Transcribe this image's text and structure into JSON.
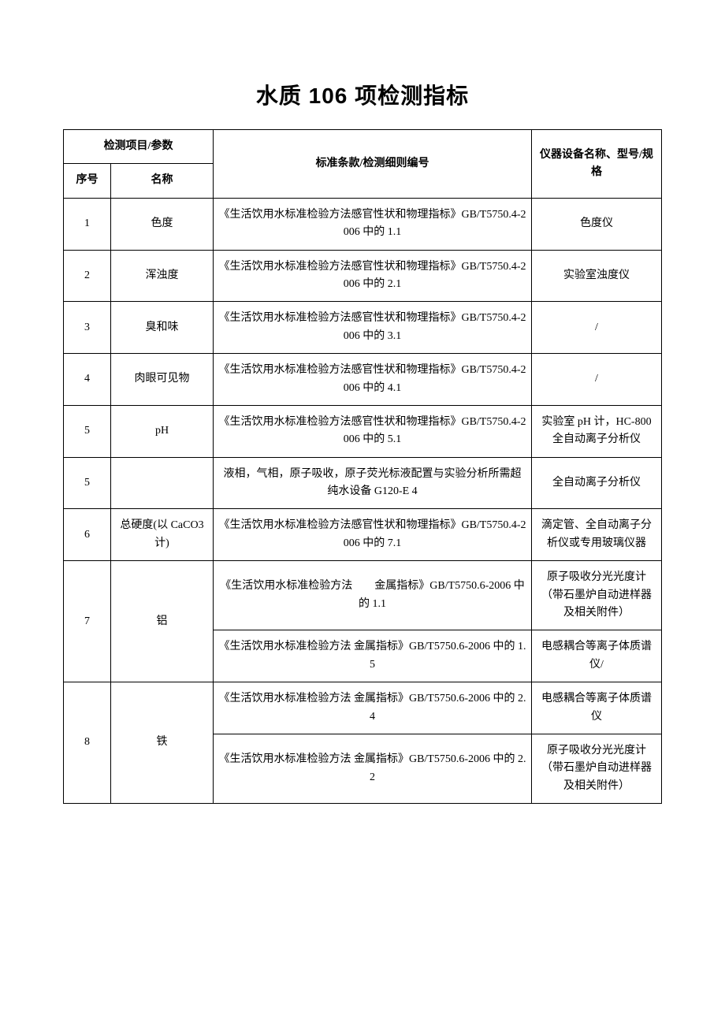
{
  "title": "水质 106 项检测指标",
  "headers": {
    "groupLeft": "检测项目/参数",
    "seq": "序号",
    "name": "名称",
    "standard": "标准条款/检测细则编号",
    "equipment": "仪器设备名称、型号/规格"
  },
  "rows": [
    {
      "seq": "1",
      "name": "色度",
      "standard": "《生活饮用水标准检验方法感官性状和物理指标》GB/T5750.4-2006 中的 1.1",
      "equipment": "色度仪"
    },
    {
      "seq": "2",
      "name": "浑浊度",
      "standard": "《生活饮用水标准检验方法感官性状和物理指标》GB/T5750.4-2006 中的 2.1",
      "equipment": "实验室浊度仪"
    },
    {
      "seq": "3",
      "name": "臭和味",
      "standard": "《生活饮用水标准检验方法感官性状和物理指标》GB/T5750.4-2006 中的 3.1",
      "equipment": "/"
    },
    {
      "seq": "4",
      "name": "肉眼可见物",
      "standard": "《生活饮用水标准检验方法感官性状和物理指标》GB/T5750.4-2006  中的 4.1",
      "equipment": "/"
    },
    {
      "seq": "5",
      "name": "pH",
      "standard": "《生活饮用水标准检验方法感官性状和物理指标》GB/T5750.4-2006  中的 5.1",
      "equipment": "实验室 pH 计，HC-800 全自动离子分析仪"
    },
    {
      "seq": "5",
      "name": "",
      "standard": "液相，气相，原子吸收，原子荧光标液配置与实验分析所需超纯水设备 G120-E  4",
      "equipment": "全自动离子分析仪"
    },
    {
      "seq": "6",
      "name": "总硬度(以 CaCO3 计)",
      "standard": "《生活饮用水标准检验方法感官性状和物理指标》GB/T5750.4-2006  中的 7.1",
      "equipment": "滴定管、全自动离子分析仪或专用玻璃仪器"
    }
  ],
  "row7": {
    "seq": "7",
    "name": "铝",
    "std1": "《生活饮用水标准检验方法　　金属指标》GB/T5750.6-2006 中的 1.1",
    "equip1": "原子吸收分光光度计\n（带石墨炉自动进样器及相关附件）",
    "std2": "《生活饮用水标准检验方法  金属指标》GB/T5750.6-2006  中的 1.5",
    "equip2": "电感耦合等离子体质谱仪/"
  },
  "row8": {
    "seq": "8",
    "name": "铁",
    "std1": "《生活饮用水标准检验方法  金属指标》GB/T5750.6-2006  中的 2.4",
    "equip1": "电感耦合等离子体质谱仪",
    "std2": "《生活饮用水标准检验方法  金属指标》GB/T5750.6-2006  中的 2.2",
    "equip2": "原子吸收分光光度计\n（带石墨炉自动进样器及相关附件）"
  }
}
